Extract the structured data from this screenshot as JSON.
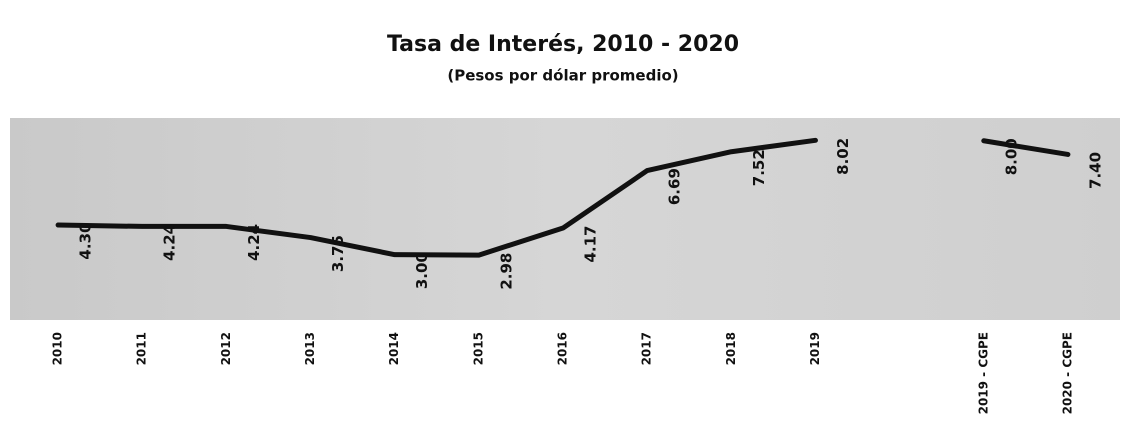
{
  "chart_data": {
    "type": "line",
    "title": "Tasa de Interés, 2010 - 2020",
    "subtitle": "(Pesos por dólar promedio)",
    "categories": [
      "2010",
      "2011",
      "2012",
      "2013",
      "2014",
      "2015",
      "2016",
      "2017",
      "2018",
      "2019",
      null,
      "2019 - CGPE",
      "2020 - CGPE"
    ],
    "series": [
      {
        "name": "Tasa de Interés",
        "color": "#111111",
        "values": [
          4.3,
          4.24,
          4.24,
          3.75,
          3.0,
          2.98,
          4.17,
          6.69,
          7.52,
          8.02,
          null,
          8.0,
          7.4
        ],
        "value_labels": [
          "4.30",
          "4.24",
          "4.24",
          "3.75",
          "3.00",
          "2.98",
          "4.17",
          "6.69",
          "7.52",
          "8.02",
          null,
          "8.00",
          "7.40"
        ]
      }
    ],
    "ylim": [
      0,
      9
    ]
  }
}
